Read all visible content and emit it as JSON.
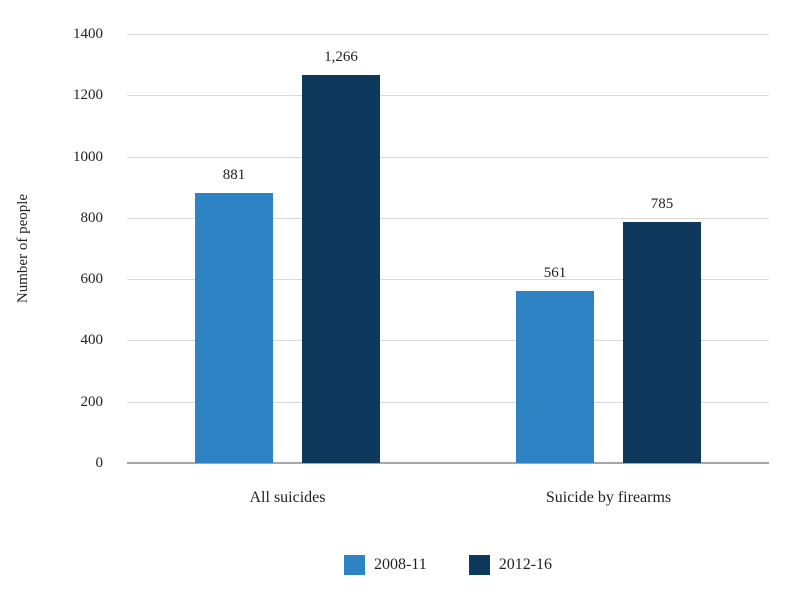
{
  "chart_data": {
    "type": "bar",
    "title": "",
    "categories": [
      "All suicides",
      "Suicide by firearms"
    ],
    "series": [
      {
        "name": "2008-11",
        "color": "#2E83C5",
        "values": [
          881,
          561
        ],
        "labels": [
          "881",
          "561"
        ]
      },
      {
        "name": "2012-16",
        "color": "#0E395C",
        "values": [
          1266,
          785
        ],
        "labels": [
          "1,266",
          "785"
        ]
      }
    ],
    "xlabel": "",
    "ylabel": "Number of people",
    "ylim": [
      0,
      1400
    ],
    "ytick_step": 200,
    "yticks": [
      "0",
      "200",
      "400",
      "600",
      "800",
      "1000",
      "1200",
      "1400"
    ],
    "grid": "horizontal",
    "legend_position": "bottom"
  },
  "colors": {
    "background": "#ffffff",
    "gridline": "#d9d9d9",
    "axis_line": "#a6a6a6",
    "text": "#222222"
  }
}
